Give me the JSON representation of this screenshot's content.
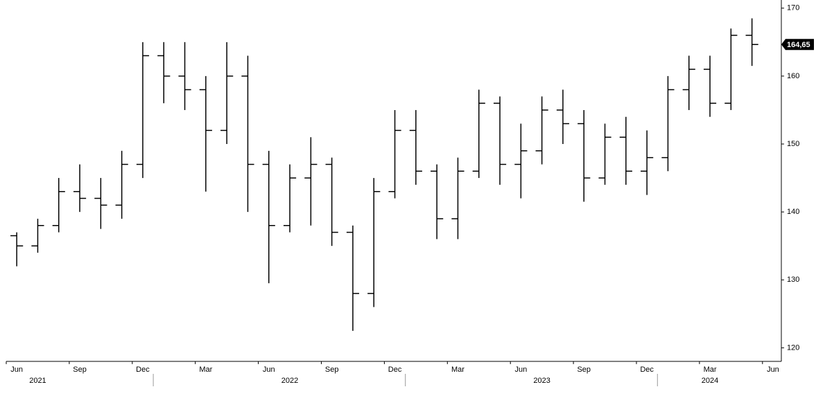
{
  "chart_data": {
    "type": "ohlc",
    "color": "#000000",
    "x": [
      "2021-06",
      "2021-07",
      "2021-08",
      "2021-09",
      "2021-10",
      "2021-11",
      "2021-12",
      "2022-01",
      "2022-02",
      "2022-03",
      "2022-04",
      "2022-05",
      "2022-06",
      "2022-07",
      "2022-08",
      "2022-09",
      "2022-10",
      "2022-11",
      "2022-12",
      "2023-01",
      "2023-02",
      "2023-03",
      "2023-04",
      "2023-05",
      "2023-06",
      "2023-07",
      "2023-08",
      "2023-09",
      "2023-10",
      "2023-11",
      "2023-12",
      "2024-01",
      "2024-02",
      "2024-03",
      "2024-04",
      "2024-05"
    ],
    "open": [
      136.5,
      135,
      138,
      143,
      142,
      141,
      147,
      163,
      160,
      158,
      152,
      160,
      147,
      138,
      145,
      147,
      137,
      128,
      143,
      152,
      146,
      139,
      146,
      156,
      147,
      149,
      155,
      153,
      145,
      151,
      146,
      148,
      158,
      161,
      156,
      166
    ],
    "high": [
      137,
      139,
      145,
      147,
      145,
      149,
      165,
      165,
      165,
      160,
      165,
      163,
      149,
      147,
      151,
      148,
      138,
      145,
      155,
      155,
      147,
      148,
      158,
      157,
      153,
      157,
      158,
      155,
      153,
      154,
      152,
      160,
      163,
      163,
      167,
      168.5
    ],
    "low": [
      132,
      134,
      137,
      140,
      137.5,
      139,
      145,
      156,
      155,
      143,
      150,
      140,
      129.5,
      137,
      138,
      135,
      122.5,
      126,
      142,
      144,
      136,
      136,
      145,
      144,
      142,
      147,
      150,
      141.5,
      144,
      144,
      142.5,
      146,
      155,
      154,
      155,
      161.5
    ],
    "close": [
      135,
      138,
      143,
      142,
      141,
      147,
      163,
      160,
      158,
      152,
      160,
      147,
      138,
      145,
      147,
      137,
      128,
      143,
      152,
      146,
      139,
      146,
      156,
      147,
      149,
      155,
      153,
      145,
      151,
      146,
      148,
      158,
      161,
      156,
      166,
      164.65
    ],
    "xticks": [
      {
        "value": "2021-06",
        "label": "Jun"
      },
      {
        "value": "2021-09",
        "label": "Sep"
      },
      {
        "value": "2021-12",
        "label": "Dec"
      },
      {
        "value": "2022-03",
        "label": "Mar"
      },
      {
        "value": "2022-06",
        "label": "Jun"
      },
      {
        "value": "2022-09",
        "label": "Sep"
      },
      {
        "value": "2022-12",
        "label": "Dec"
      },
      {
        "value": "2023-03",
        "label": "Mar"
      },
      {
        "value": "2023-06",
        "label": "Jun"
      },
      {
        "value": "2023-09",
        "label": "Sep"
      },
      {
        "value": "2023-12",
        "label": "Dec"
      },
      {
        "value": "2024-03",
        "label": "Mar"
      },
      {
        "value": "2024-06",
        "label": "Jun"
      }
    ],
    "years": [
      {
        "value": "2021-07",
        "label": "2021"
      },
      {
        "value": "2022-07",
        "label": "2022"
      },
      {
        "value": "2023-07",
        "label": "2023"
      },
      {
        "value": "2024-03",
        "label": "2024"
      }
    ],
    "ylim": [
      118,
      171.2
    ],
    "yticks": [
      120,
      130,
      140,
      150,
      160,
      170
    ],
    "last_price": {
      "value": 164.65,
      "label": "164,65"
    }
  }
}
